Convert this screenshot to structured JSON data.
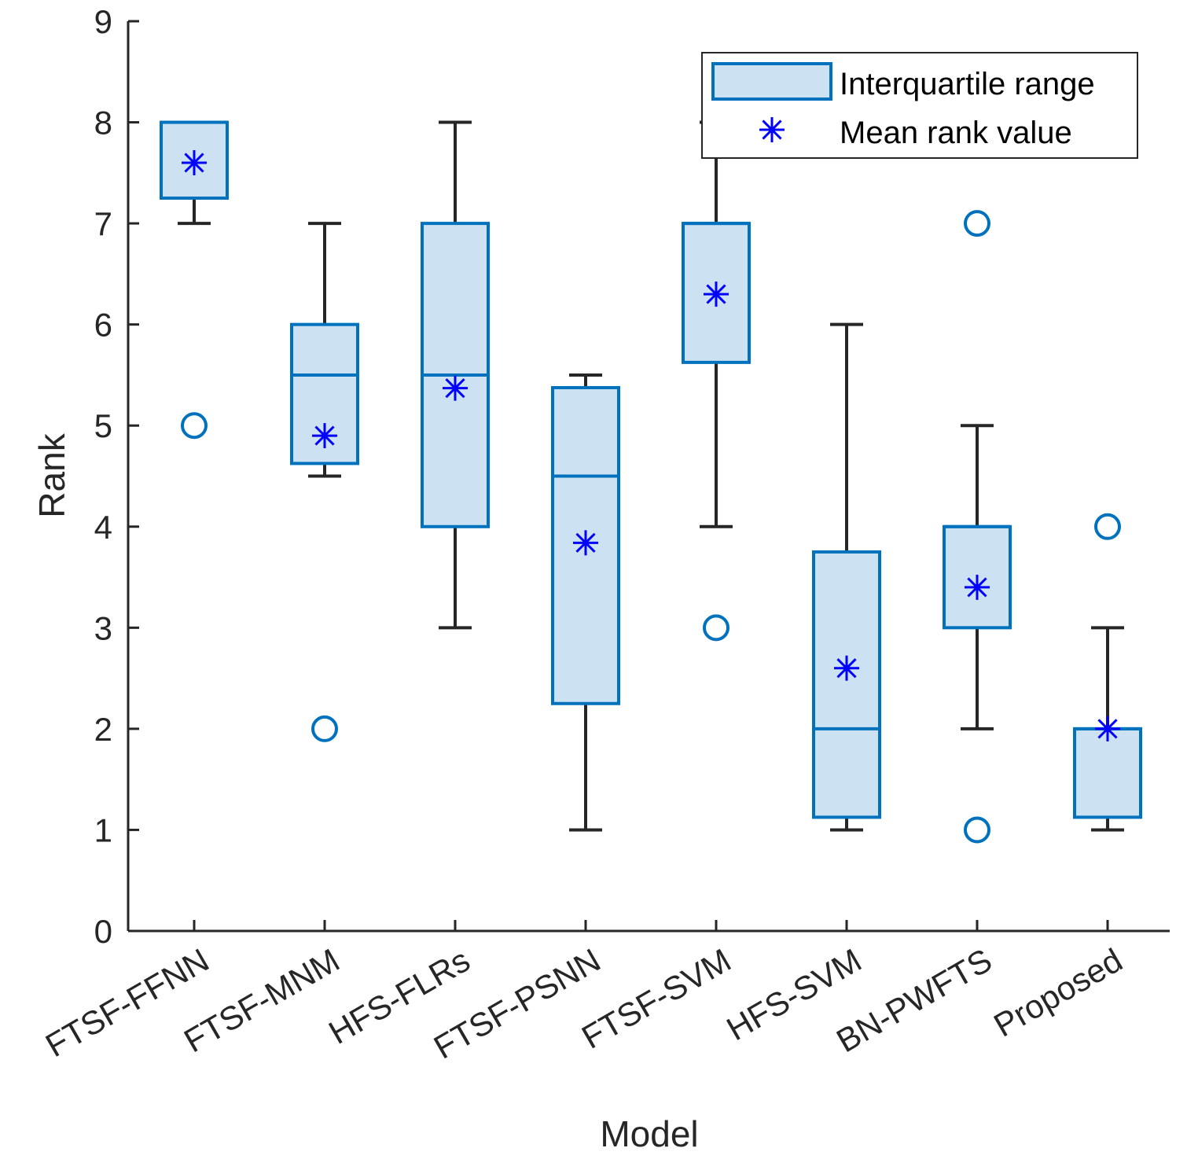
{
  "chart_data": {
    "type": "boxplot",
    "xlabel": "Model",
    "ylabel": "Rank",
    "ylim": [
      0,
      9
    ],
    "yticks": [
      0,
      1,
      2,
      3,
      4,
      5,
      6,
      7,
      8,
      9
    ],
    "categories": [
      "FTSF-FFNN",
      "FTSF-MNM",
      "HFS-FLRs",
      "FTSF-PSNN",
      "FTSF-SVM",
      "HFS-SVM",
      "BN-PWFTS",
      "Proposed"
    ],
    "boxes": [
      {
        "q1": 7.25,
        "median": 8.0,
        "q3": 8.0,
        "whisker_low": 7.0,
        "whisker_high": 8.0,
        "mean": 7.6,
        "outliers": [
          5
        ]
      },
      {
        "q1": 4.625,
        "median": 5.5,
        "q3": 6.0,
        "whisker_low": 4.5,
        "whisker_high": 7.0,
        "mean": 4.9,
        "outliers": [
          2
        ]
      },
      {
        "q1": 4.0,
        "median": 5.5,
        "q3": 7.0,
        "whisker_low": 3.0,
        "whisker_high": 8.0,
        "mean": 5.37,
        "outliers": []
      },
      {
        "q1": 2.25,
        "median": 4.5,
        "q3": 5.375,
        "whisker_low": 1.0,
        "whisker_high": 5.5,
        "mean": 3.84,
        "outliers": []
      },
      {
        "q1": 5.625,
        "median": 7.0,
        "q3": 7.0,
        "whisker_low": 4.0,
        "whisker_high": 8.0,
        "mean": 6.3,
        "outliers": [
          3
        ]
      },
      {
        "q1": 1.125,
        "median": 2.0,
        "q3": 3.75,
        "whisker_low": 1.0,
        "whisker_high": 6.0,
        "mean": 2.6,
        "outliers": []
      },
      {
        "q1": 3.0,
        "median": 4.0,
        "q3": 4.0,
        "whisker_low": 2.0,
        "whisker_high": 5.0,
        "mean": 3.4,
        "outliers": [
          7,
          1
        ]
      },
      {
        "q1": 1.125,
        "median": 2.0,
        "q3": 2.0,
        "whisker_low": 1.0,
        "whisker_high": 3.0,
        "mean": 2.0,
        "outliers": [
          4
        ]
      }
    ],
    "legend": {
      "position": "top-right",
      "entries": [
        "Interquartile range",
        "Mean rank value"
      ]
    },
    "colors": {
      "box_edge": "#0072BD",
      "box_fill": "#CCE2F2",
      "whisker": "#262626",
      "mean_marker": "#0000FF",
      "outlier": "#0072BD",
      "axis": "#262626"
    }
  }
}
